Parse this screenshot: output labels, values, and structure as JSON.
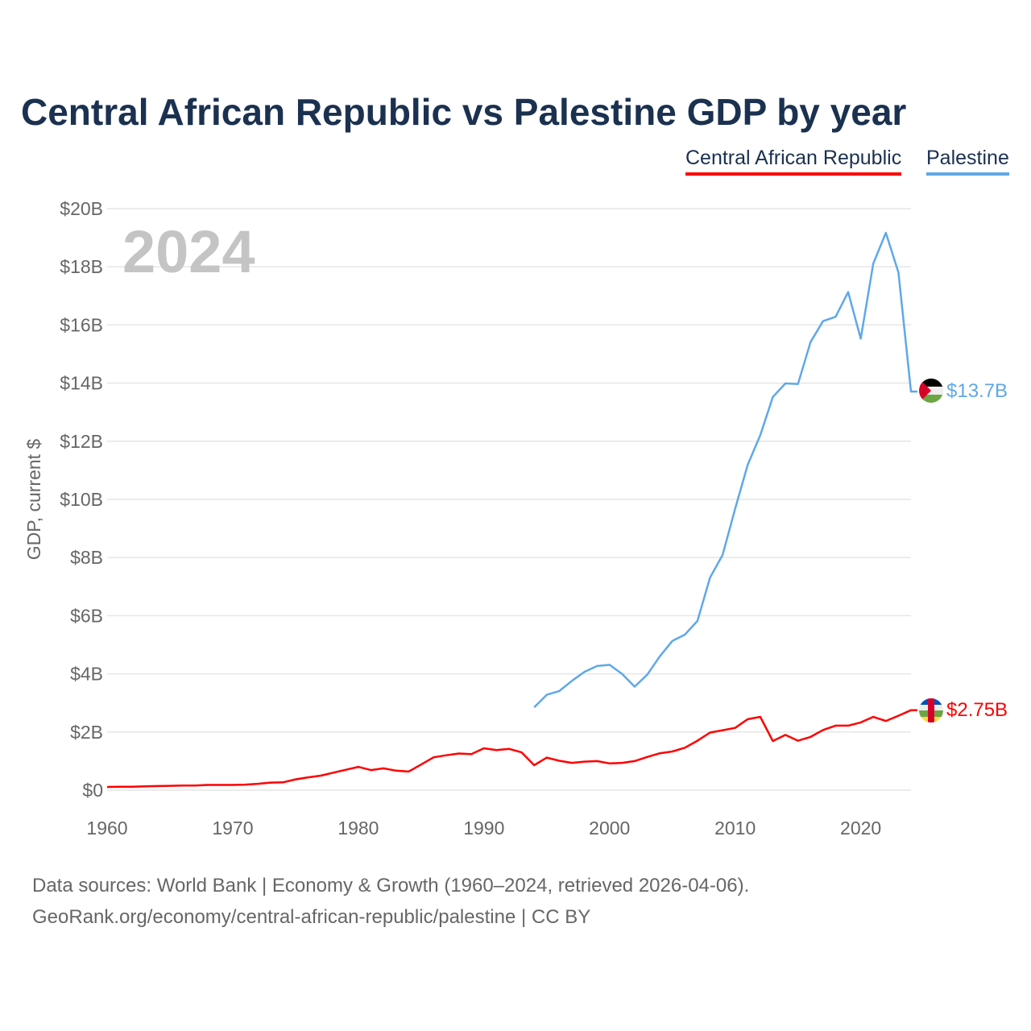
{
  "title": "Central African Republic vs Palestine GDP by year",
  "footer": {
    "line1": "Data sources: World Bank | Economy & Growth (1960–2024, retrieved 2026-04-06).",
    "line2": "GeoRank.org/economy/central-african-republic/palestine | CC BY"
  },
  "chart_data": {
    "type": "line",
    "title": "Central African Republic vs Palestine GDP by year",
    "ylabel": "GDP, current $",
    "xlabel": "",
    "year_watermark": "2024",
    "xlim": [
      1960,
      2024
    ],
    "ylim": [
      0,
      20
    ],
    "x_ticks": [
      "1960",
      "1970",
      "1980",
      "1990",
      "2000",
      "2010",
      "2020"
    ],
    "y_ticks": [
      "$0",
      "$2B",
      "$4B",
      "$6B",
      "$8B",
      "$10B",
      "$12B",
      "$14B",
      "$16B",
      "$18B",
      "$20B"
    ],
    "grid": true,
    "legend_placement": "top-right",
    "series": [
      {
        "name": "Central African Republic",
        "color": "#ff0000",
        "flag": "central-african-republic-flag-icon",
        "end_label": "$2.75B",
        "start_year": 1960,
        "values": [
          0.11,
          0.12,
          0.12,
          0.13,
          0.14,
          0.15,
          0.16,
          0.16,
          0.18,
          0.18,
          0.18,
          0.19,
          0.22,
          0.26,
          0.27,
          0.37,
          0.44,
          0.5,
          0.6,
          0.7,
          0.8,
          0.69,
          0.75,
          0.67,
          0.64,
          0.88,
          1.13,
          1.2,
          1.26,
          1.24,
          1.44,
          1.38,
          1.42,
          1.3,
          0.86,
          1.12,
          1.01,
          0.94,
          0.98,
          1.0,
          0.92,
          0.94,
          1.0,
          1.14,
          1.27,
          1.33,
          1.46,
          1.7,
          1.98,
          2.06,
          2.14,
          2.44,
          2.52,
          1.69,
          1.9,
          1.7,
          1.83,
          2.07,
          2.22,
          2.22,
          2.33,
          2.52,
          2.38,
          2.56,
          2.75
        ]
      },
      {
        "name": "Palestine",
        "color": "#5fa8e8",
        "flag": "palestine-flag-icon",
        "end_label": "$13.7B",
        "start_year": 1994,
        "values": [
          2.85,
          3.28,
          3.41,
          3.76,
          4.07,
          4.27,
          4.31,
          4.0,
          3.56,
          3.97,
          4.6,
          5.13,
          5.35,
          5.82,
          7.31,
          8.09,
          9.68,
          11.19,
          12.21,
          13.52,
          13.99,
          13.97,
          15.41,
          16.13,
          16.28,
          17.13,
          15.53,
          18.11,
          19.17,
          17.81,
          13.71
        ]
      }
    ]
  }
}
